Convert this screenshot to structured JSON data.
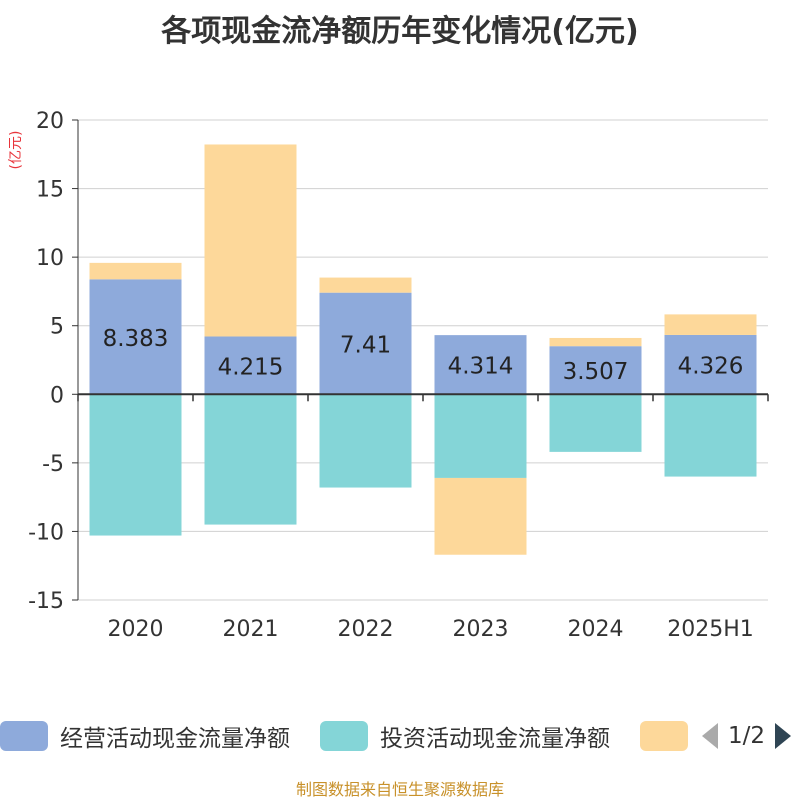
{
  "title": "各项现金流净额历年变化情况(亿元)",
  "unit_label": "(亿元)",
  "source": "制图数据来自恒生聚源数据库",
  "legend": {
    "items": [
      {
        "label": "经营活动现金流量净额",
        "color": "#8eaadb"
      },
      {
        "label": "投资活动现金流量净额",
        "color": "#84d5d7"
      },
      {
        "label": "",
        "color": "#fdd89a"
      }
    ],
    "page_text": "1/2",
    "prev_icon": "chevron-left-icon",
    "next_icon": "chevron-right-icon"
  },
  "chart_data": {
    "type": "bar",
    "stacked": true,
    "categories": [
      "2020",
      "2021",
      "2022",
      "2023",
      "2024",
      "2025H1"
    ],
    "ylim": [
      -15,
      20
    ],
    "yticks": [
      -15,
      -10,
      -5,
      0,
      5,
      10,
      15,
      20
    ],
    "grid": true,
    "legend_position": "bottom",
    "series": [
      {
        "name": "经营活动现金流量净额",
        "color": "#8eaadb",
        "values": [
          8.383,
          4.215,
          7.41,
          4.314,
          3.507,
          4.326
        ],
        "show_labels": true
      },
      {
        "name": "投资活动现金流量净额",
        "color": "#84d5d7",
        "values": [
          -10.3,
          -9.5,
          -6.8,
          -6.1,
          -4.2,
          -6.0
        ],
        "show_labels": false
      },
      {
        "name": "",
        "color": "#fdd89a",
        "values": [
          1.2,
          14.0,
          1.1,
          -5.6,
          0.6,
          1.5
        ],
        "show_labels": false
      }
    ],
    "data_labels": [
      "8.383",
      "4.215",
      "7.41",
      "4.314",
      "3.507",
      "4.326"
    ]
  }
}
